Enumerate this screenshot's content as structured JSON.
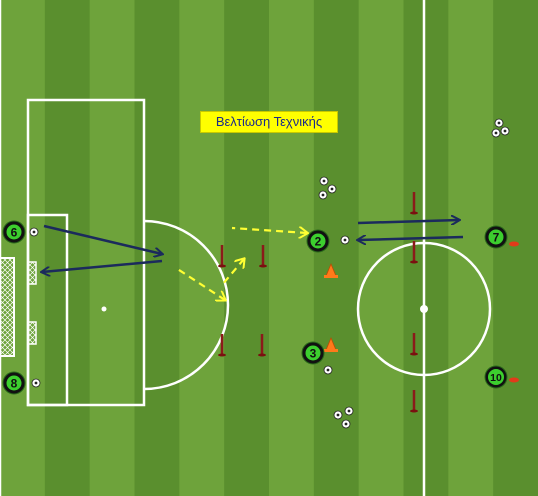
{
  "title": "Βελτίωση Τεχνικής",
  "colors": {
    "grass_light": "#6ea33b",
    "grass_dark": "#5a8f2e",
    "line": "#ffffff",
    "title_bg": "#ffff00",
    "title_text": "#1a2b8a",
    "arrow_navy": "#1b2a5c",
    "arrow_yellow": "#ffff33",
    "pole": "#8b1a1a",
    "cone": "#ff7a1a",
    "player_fill": "#111111",
    "player_ring": "#3ccf2e"
  },
  "players": [
    {
      "number": "6"
    },
    {
      "number": "8"
    },
    {
      "number": "2"
    },
    {
      "number": "3"
    },
    {
      "number": "7"
    },
    {
      "number": "10"
    }
  ]
}
